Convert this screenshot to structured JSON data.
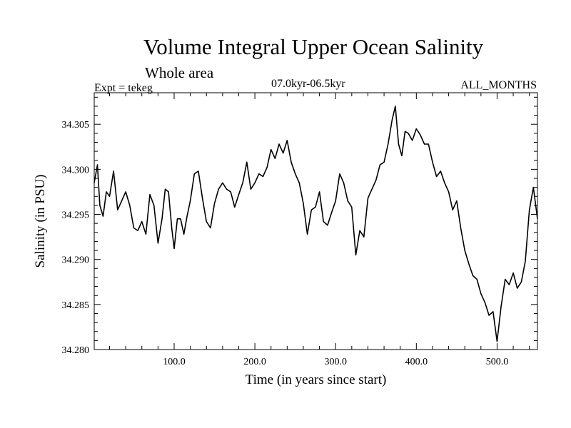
{
  "chart_data": {
    "type": "line",
    "title": "Volume Integral Upper Ocean Salinity",
    "subtitle": "Whole area",
    "experiment": "Expt = tekeg",
    "period": "07.0kyr-06.5kyr",
    "months": "ALL_MONTHS",
    "xlabel": "Time (in years since start)",
    "ylabel": "Salinity (in PSU)",
    "xlim": [
      1,
      550
    ],
    "ylim": [
      34.28,
      34.3085
    ],
    "xticks": [
      100,
      200,
      300,
      400,
      500
    ],
    "xtick_labels": [
      "100.0",
      "200.0",
      "300.0",
      "400.0",
      "500.0"
    ],
    "yticks": [
      34.28,
      34.285,
      34.29,
      34.295,
      34.3,
      34.305
    ],
    "ytick_labels": [
      "34.280",
      "34.285",
      "34.290",
      "34.295",
      "34.300",
      "34.305"
    ],
    "line_color": "#000000",
    "series": [
      {
        "name": "Salinity",
        "x": [
          1,
          5,
          8,
          12,
          16,
          20,
          25,
          30,
          35,
          40,
          45,
          50,
          55,
          60,
          65,
          70,
          75,
          80,
          85,
          89,
          93,
          97,
          100,
          104,
          108,
          112,
          116,
          120,
          125,
          130,
          135,
          140,
          145,
          150,
          155,
          160,
          165,
          170,
          175,
          180,
          185,
          190,
          195,
          200,
          205,
          210,
          215,
          220,
          225,
          230,
          235,
          240,
          245,
          250,
          255,
          260,
          265,
          270,
          275,
          280,
          285,
          290,
          295,
          300,
          305,
          310,
          315,
          320,
          325,
          330,
          335,
          340,
          345,
          350,
          355,
          360,
          365,
          370,
          374,
          378,
          382,
          386,
          390,
          395,
          400,
          405,
          410,
          415,
          420,
          425,
          430,
          435,
          440,
          445,
          450,
          455,
          460,
          465,
          470,
          475,
          480,
          485,
          490,
          495,
          500,
          505,
          510,
          515,
          520,
          525,
          530,
          535,
          540,
          545,
          550
        ],
        "values": [
          34.2985,
          34.3005,
          34.296,
          34.2948,
          34.2975,
          34.297,
          34.2998,
          34.2955,
          34.2965,
          34.2975,
          34.296,
          34.2935,
          34.2932,
          34.2942,
          34.2928,
          34.2972,
          34.296,
          34.2918,
          34.2945,
          34.2978,
          34.2975,
          34.2935,
          34.2912,
          34.2945,
          34.2945,
          34.2928,
          34.2948,
          34.2965,
          34.2995,
          34.2998,
          34.2968,
          34.2942,
          34.2935,
          34.2962,
          34.2978,
          34.2985,
          34.2978,
          34.2975,
          34.2958,
          34.2972,
          34.2985,
          34.3008,
          34.2978,
          34.2985,
          34.2995,
          34.2992,
          34.3002,
          34.3022,
          34.3012,
          34.3028,
          34.3018,
          34.3032,
          34.3008,
          34.2995,
          34.2985,
          34.2962,
          34.2928,
          34.2955,
          34.2958,
          34.2975,
          34.2942,
          34.2938,
          34.2952,
          34.2965,
          34.2995,
          34.2985,
          34.2965,
          34.2958,
          34.2905,
          34.2932,
          34.2925,
          34.2968,
          34.2978,
          34.2988,
          34.3005,
          34.3008,
          34.3028,
          34.3055,
          34.307,
          34.3028,
          34.3015,
          34.3042,
          34.304,
          34.3032,
          34.3045,
          34.3038,
          34.3028,
          34.3028,
          34.3008,
          34.2992,
          34.2998,
          34.2985,
          34.2975,
          34.2955,
          34.2965,
          34.2935,
          34.291,
          34.2895,
          34.2882,
          34.2878,
          34.2862,
          34.2852,
          34.2838,
          34.2842,
          34.2809,
          34.2848,
          34.2878,
          34.2872,
          34.2885,
          34.2868,
          34.2875,
          34.2898,
          34.2955,
          34.298,
          34.2945
        ]
      }
    ]
  }
}
